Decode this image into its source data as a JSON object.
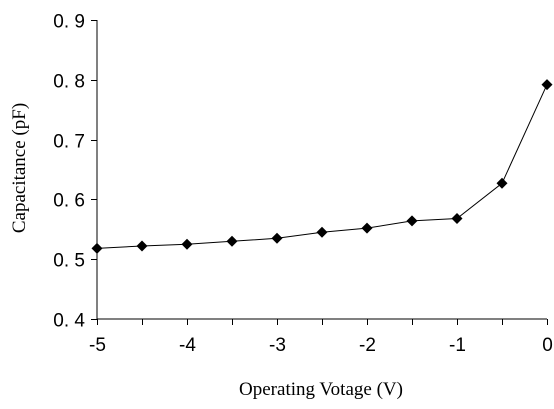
{
  "chart_data": {
    "type": "line",
    "title": "",
    "xlabel": "Operating Votage (V)",
    "ylabel": "Capacitance (pF)",
    "xlim": [
      -5,
      0
    ],
    "ylim": [
      0.4,
      0.9
    ],
    "x_ticks": [
      -5,
      -4,
      -3,
      -2,
      -1,
      0
    ],
    "x_tick_labels": [
      "-5",
      "-4",
      "-3",
      "-2",
      "-1",
      "0"
    ],
    "y_ticks": [
      0.4,
      0.5,
      0.6,
      0.7,
      0.8,
      0.9
    ],
    "y_tick_labels": [
      "0. 4",
      "0. 5",
      "0. 6",
      "0. 7",
      "0. 8",
      "0. 9"
    ],
    "x_minor_ticks": [
      -4.5,
      -3.5,
      -2.5,
      -1.5,
      -0.5
    ],
    "grid": false,
    "legend": "none",
    "marker": "diamond",
    "colors": {
      "line": "#000000",
      "marker": "#000000",
      "axis": "#000000",
      "background": "#ffffff"
    },
    "series": [
      {
        "x": [
          -5,
          -4.5,
          -4,
          -3.5,
          -3,
          -2.5,
          -2,
          -1.5,
          -1,
          -0.5,
          0
        ],
        "y": [
          0.518,
          0.522,
          0.525,
          0.53,
          0.535,
          0.545,
          0.552,
          0.564,
          0.568,
          0.627,
          0.792
        ]
      }
    ]
  }
}
